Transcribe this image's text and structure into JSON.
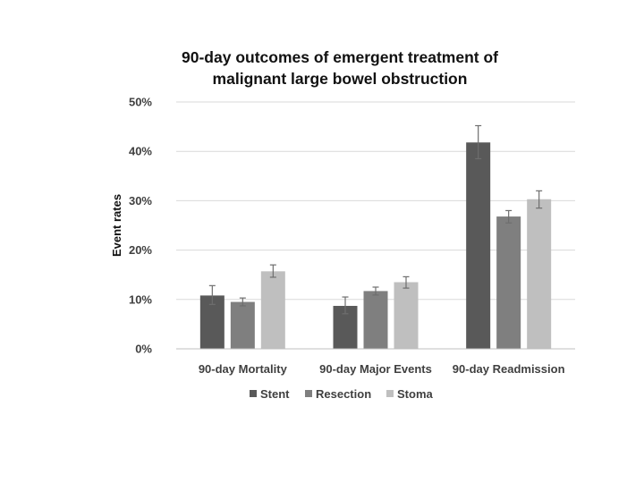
{
  "chart_data": {
    "type": "bar",
    "title_lines": [
      "90-day outcomes of emergent treatment of",
      "malignant large bowel obstruction"
    ],
    "xlabel": "",
    "ylabel": "Event rates",
    "categories": [
      "90-day Mortality",
      "90-day Major Events",
      "90-day Readmission"
    ],
    "series": [
      {
        "name": "Stent",
        "color": "#595959",
        "values": [
          10.8,
          8.7,
          41.8
        ],
        "error_low": [
          9.0,
          7.1,
          38.5
        ],
        "error_high": [
          12.8,
          10.5,
          45.2
        ]
      },
      {
        "name": "Resection",
        "color": "#7f7f7f",
        "values": [
          9.5,
          11.7,
          26.8
        ],
        "error_low": [
          8.7,
          10.9,
          25.5
        ],
        "error_high": [
          10.3,
          12.5,
          28.0
        ]
      },
      {
        "name": "Stoma",
        "color": "#bfbfbf",
        "values": [
          15.7,
          13.5,
          30.3
        ],
        "error_low": [
          14.5,
          12.3,
          28.5
        ],
        "error_high": [
          17.0,
          14.6,
          32.0
        ]
      }
    ],
    "ylim": [
      0,
      50
    ],
    "yticks": [
      0,
      10,
      20,
      30,
      40,
      50
    ],
    "ytick_labels": [
      "0%",
      "10%",
      "20%",
      "30%",
      "40%",
      "50%"
    ],
    "grid": true,
    "legend_position": "bottom"
  }
}
